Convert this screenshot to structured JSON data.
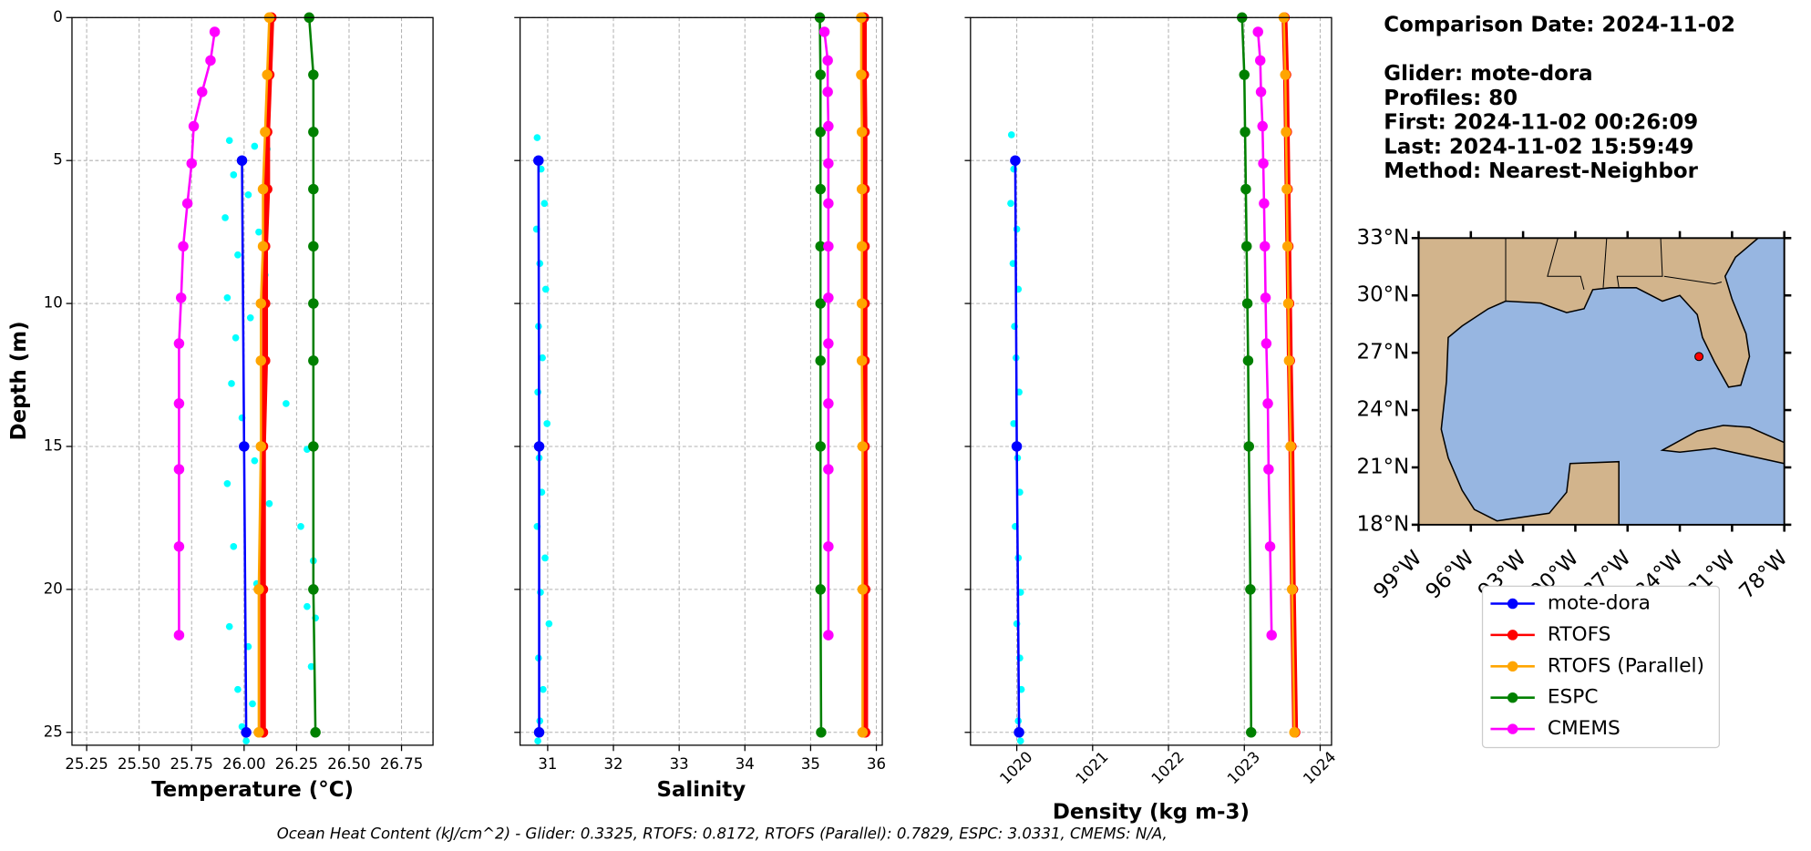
{
  "info": [
    "Comparison Date: 2024-11-02",
    "Glider: mote-dora",
    "Profiles: 80",
    "First: 2024-11-02 00:26:09",
    "Last: 2024-11-02 15:59:49",
    "Method: Nearest-Neighbor"
  ],
  "footnote": "Ocean Heat Content (kJ/cm^2) - Glider: 0.3325,  RTOFS: 0.8172,  RTOFS (Parallel): 0.7829,  ESPC: 3.0331,  CMEMS: N/A,",
  "chart_data": [
    {
      "type": "line",
      "xlabel": "Temperature (°C)",
      "ylabel": "Depth (m)",
      "xlim": [
        25.18,
        26.9
      ],
      "ylim": [
        25.45,
        0
      ],
      "xticks": [
        25.25,
        {
          "value": 25.5,
          "label": "25.50"
        },
        25.75,
        {
          "value": 26,
          "label": "26.00"
        },
        26.25,
        {
          "value": 26.5,
          "label": "26.50"
        },
        26.75
      ],
      "yticks": [
        0,
        5,
        10,
        15,
        20,
        25
      ],
      "show_ytick_labels": true,
      "grid": true,
      "scatter": {
        "color": "#00ffff",
        "x": [
          25.93,
          26.05,
          26.11,
          25.95,
          26.02,
          25.91,
          26.07,
          25.97,
          26.1,
          25.92,
          26.03,
          25.96,
          26.08,
          25.94,
          26.2,
          25.99,
          26.05,
          26.3,
          25.92,
          26.12,
          26.27,
          25.95,
          26.33,
          26.06,
          26.3,
          25.93,
          26.34,
          26.02,
          26.32,
          25.97,
          26.04,
          25.99,
          26.01
        ],
        "y": [
          4.3,
          4.5,
          4.6,
          5.5,
          6.2,
          7,
          7.5,
          8.3,
          9,
          9.8,
          10.5,
          11.2,
          12,
          12.8,
          13.5,
          14,
          15.5,
          15.1,
          16.3,
          17,
          17.8,
          18.5,
          19,
          19.8,
          20.6,
          21.3,
          21,
          22,
          22.7,
          23.5,
          24,
          24.8,
          25.3
        ]
      },
      "series": [
        {
          "name": "mote-dora",
          "color": "#0000ff",
          "x": [
            25.99,
            26.0,
            26.01
          ],
          "y": [
            5,
            15,
            25
          ]
        },
        {
          "name": "RTOFS",
          "color": "#ff0000",
          "x": [
            26.13,
            26.12,
            26.11,
            26.11,
            26.1,
            26.1,
            26.1,
            26.09,
            26.09,
            26.09
          ],
          "y": [
            0,
            2,
            4,
            6,
            8,
            10,
            12,
            15,
            20,
            25
          ]
        },
        {
          "name": "RTOFS (Parallel)",
          "color": "#ffa500",
          "x": [
            26.12,
            26.11,
            26.1,
            26.09,
            26.09,
            26.08,
            26.08,
            26.08,
            26.07,
            26.07
          ],
          "y": [
            0,
            2,
            4,
            6,
            8,
            10,
            12,
            15,
            20,
            25
          ]
        },
        {
          "name": "ESPC",
          "color": "#008000",
          "x": [
            26.31,
            26.33,
            26.33,
            26.33,
            26.33,
            26.33,
            26.33,
            26.33,
            26.33,
            26.34
          ],
          "y": [
            0,
            2,
            4,
            6,
            8,
            10,
            12,
            15,
            20,
            25
          ]
        },
        {
          "name": "CMEMS",
          "color": "#ff00ff",
          "x": [
            25.86,
            25.84,
            25.8,
            25.76,
            25.75,
            25.73,
            25.71,
            25.7,
            25.69,
            25.69,
            25.69,
            25.69,
            25.69
          ],
          "y": [
            0.5,
            1.5,
            2.6,
            3.8,
            5.1,
            6.5,
            8,
            9.8,
            11.4,
            13.5,
            15.8,
            18.5,
            21.6
          ]
        }
      ]
    },
    {
      "type": "line",
      "xlabel": "Salinity",
      "xlim": [
        30.58,
        36.09
      ],
      "ylim": [
        25.45,
        0
      ],
      "xticks": [
        31,
        32,
        33,
        34,
        35,
        36
      ],
      "yticks": [
        0,
        5,
        10,
        15,
        20,
        25
      ],
      "show_ytick_labels": false,
      "grid": true,
      "scatter": {
        "color": "#00ffff",
        "x": [
          30.84,
          30.9,
          30.95,
          30.83,
          30.88,
          30.97,
          30.86,
          30.92,
          30.85,
          30.99,
          30.87,
          30.91,
          30.84,
          30.96,
          30.89,
          31.02,
          30.86,
          30.93,
          30.88,
          30.85
        ],
        "y": [
          4.2,
          5.3,
          6.5,
          7.4,
          8.6,
          9.5,
          10.8,
          11.9,
          13.1,
          14.2,
          15.4,
          16.6,
          17.8,
          18.9,
          20.1,
          21.2,
          22.4,
          23.5,
          24.6,
          25.3
        ]
      },
      "series": [
        {
          "name": "mote-dora",
          "color": "#0000ff",
          "x": [
            30.86,
            30.87,
            30.87
          ],
          "y": [
            5,
            15,
            25
          ]
        },
        {
          "name": "RTOFS",
          "color": "#ff0000",
          "x": [
            35.81,
            35.81,
            35.82,
            35.82,
            35.82,
            35.82,
            35.82,
            35.82,
            35.83,
            35.83
          ],
          "y": [
            0,
            2,
            4,
            6,
            8,
            10,
            12,
            15,
            20,
            25
          ]
        },
        {
          "name": "RTOFS (Parallel)",
          "color": "#ffa500",
          "x": [
            35.77,
            35.77,
            35.78,
            35.78,
            35.78,
            35.78,
            35.78,
            35.79,
            35.79,
            35.79
          ],
          "y": [
            0,
            2,
            4,
            6,
            8,
            10,
            12,
            15,
            20,
            25
          ]
        },
        {
          "name": "ESPC",
          "color": "#008000",
          "x": [
            35.14,
            35.15,
            35.15,
            35.15,
            35.15,
            35.15,
            35.15,
            35.15,
            35.15,
            35.16
          ],
          "y": [
            0,
            2,
            4,
            6,
            8,
            10,
            12,
            15,
            20,
            25
          ]
        },
        {
          "name": "CMEMS",
          "color": "#ff00ff",
          "x": [
            35.21,
            35.26,
            35.26,
            35.27,
            35.27,
            35.27,
            35.27,
            35.27,
            35.27,
            35.27,
            35.27,
            35.27,
            35.27
          ],
          "y": [
            0.5,
            1.5,
            2.6,
            3.8,
            5.1,
            6.5,
            8,
            9.8,
            11.4,
            13.5,
            15.8,
            18.5,
            21.6
          ]
        }
      ]
    },
    {
      "type": "line",
      "xlabel": "Density (kg m-3)",
      "xlim": [
        1019.39,
        1024.15
      ],
      "ylim": [
        25.45,
        0
      ],
      "xtick_rotation": 45,
      "xticks": [
        1020,
        1021,
        1022,
        1023,
        1024
      ],
      "yticks": [
        0,
        5,
        10,
        15,
        20,
        25
      ],
      "show_ytick_labels": false,
      "grid": true,
      "scatter": {
        "color": "#00ffff",
        "x": [
          1019.93,
          1019.96,
          1019.92,
          1020.0,
          1019.95,
          1020.02,
          1019.97,
          1019.99,
          1020.03,
          1019.96,
          1020.01,
          1020.04,
          1019.98,
          1020.02,
          1020.05,
          1020.0,
          1020.04,
          1020.06,
          1020.02,
          1020.05
        ],
        "y": [
          4.1,
          5.3,
          6.5,
          7.4,
          8.6,
          9.5,
          10.8,
          11.9,
          13.1,
          14.2,
          15.4,
          16.6,
          17.8,
          18.9,
          20.1,
          21.2,
          22.4,
          23.5,
          24.6,
          25.3
        ]
      },
      "series": [
        {
          "name": "mote-dora",
          "color": "#0000ff",
          "x": [
            1019.98,
            1020.0,
            1020.03
          ],
          "y": [
            5,
            15,
            25
          ]
        },
        {
          "name": "RTOFS",
          "color": "#ff0000",
          "x": [
            1023.53,
            1023.55,
            1023.56,
            1023.57,
            1023.58,
            1023.59,
            1023.6,
            1023.62,
            1023.64,
            1023.67
          ],
          "y": [
            0,
            2,
            4,
            6,
            8,
            10,
            12,
            15,
            20,
            25
          ]
        },
        {
          "name": "RTOFS (Parallel)",
          "color": "#ffa500",
          "x": [
            1023.52,
            1023.54,
            1023.55,
            1023.56,
            1023.57,
            1023.58,
            1023.59,
            1023.61,
            1023.63,
            1023.66
          ],
          "y": [
            0,
            2,
            4,
            6,
            8,
            10,
            12,
            15,
            20,
            25
          ]
        },
        {
          "name": "ESPC",
          "color": "#008000",
          "x": [
            1022.97,
            1023.0,
            1023.01,
            1023.02,
            1023.03,
            1023.04,
            1023.05,
            1023.06,
            1023.08,
            1023.09
          ],
          "y": [
            0,
            2,
            4,
            6,
            8,
            10,
            12,
            15,
            20,
            25
          ]
        },
        {
          "name": "CMEMS",
          "color": "#ff00ff",
          "x": [
            1023.18,
            1023.21,
            1023.22,
            1023.24,
            1023.25,
            1023.26,
            1023.27,
            1023.28,
            1023.29,
            1023.31,
            1023.32,
            1023.34,
            1023.36
          ],
          "y": [
            0.5,
            1.5,
            2.6,
            3.8,
            5.1,
            6.5,
            8,
            9.8,
            11.4,
            13.5,
            15.8,
            18.5,
            21.6
          ]
        }
      ]
    },
    {
      "type": "map",
      "xlim": [
        -99,
        -78
      ],
      "ylim": [
        18,
        33
      ],
      "xticks": [
        {
          "value": -99,
          "label": "99°W"
        },
        {
          "value": -96,
          "label": "96°W"
        },
        {
          "value": -93,
          "label": "93°W"
        },
        {
          "value": -90,
          "label": "90°W"
        },
        {
          "value": -87,
          "label": "87°W"
        },
        {
          "value": -84,
          "label": "84°W"
        },
        {
          "value": -81,
          "label": "81°W"
        },
        {
          "value": -78,
          "label": "78°W"
        }
      ],
      "yticks": [
        {
          "value": 18,
          "label": "18°N"
        },
        {
          "value": 21,
          "label": "21°N"
        },
        {
          "value": 24,
          "label": "24°N"
        },
        {
          "value": 27,
          "label": "27°N"
        },
        {
          "value": 30,
          "label": "30°N"
        },
        {
          "value": 33,
          "label": "33°N"
        }
      ],
      "points": {
        "color": "#ff0000",
        "x": [
          -82.9
        ],
        "y": [
          26.8
        ]
      }
    }
  ]
}
